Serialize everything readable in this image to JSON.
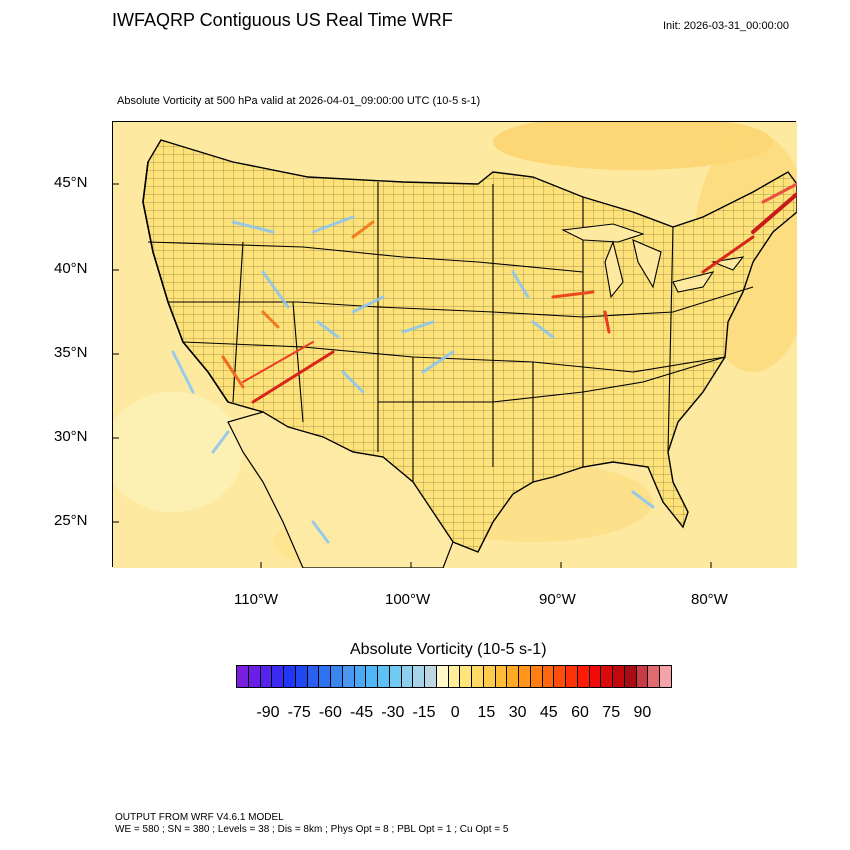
{
  "header": {
    "title": "IWFAQRP Contiguous US Real Time WRF",
    "init": "Init: 2026-03-31_00:00:00",
    "subtitle": "Absolute Vorticity at 500 hPa valid at 2026-04-01_09:00:00 UTC   (10-5 s-1)"
  },
  "map": {
    "lat_labels": [
      "45°N",
      "40°N",
      "35°N",
      "30°N",
      "25°N"
    ],
    "lon_labels": [
      "110°W",
      "100°W",
      "90°W",
      "80°W"
    ],
    "background_color": "#fde68a"
  },
  "legend": {
    "title": "Absolute Vorticity  (10-5 s-1)",
    "tick_labels": [
      "-90",
      "-75",
      "-60",
      "-45",
      "-30",
      "-15",
      "0",
      "15",
      "30",
      "45",
      "60",
      "75",
      "90"
    ],
    "colors": [
      "#7a1fe0",
      "#6a1ee6",
      "#5523ee",
      "#3b2bf2",
      "#2236f5",
      "#1f48f0",
      "#2a5ff0",
      "#2f72ef",
      "#3a85ef",
      "#4a97f2",
      "#4aa8f5",
      "#4fb6f7",
      "#5cc2f5",
      "#72caf2",
      "#8ecfee",
      "#a6d4ea",
      "#bcd6e4",
      "#fff8c8",
      "#ffef9a",
      "#ffe57a",
      "#ffd964",
      "#ffcb4c",
      "#ffbc38",
      "#ffaa24",
      "#ff951a",
      "#ff7f14",
      "#ff6810",
      "#ff4e0c",
      "#ff3208",
      "#ff1a06",
      "#f00a0a",
      "#d80a0c",
      "#c0080e",
      "#a80c12",
      "#c83a44",
      "#e06a70",
      "#f4a4a8"
    ]
  },
  "footer": {
    "line1": "OUTPUT FROM WRF V4.6.1 MODEL",
    "line2": "WE = 580 ; SN = 380 ; Levels = 38 ; Dis = 8km ; Phys Opt = 8 ; PBL Opt = 1 ; Cu Opt = 5"
  }
}
